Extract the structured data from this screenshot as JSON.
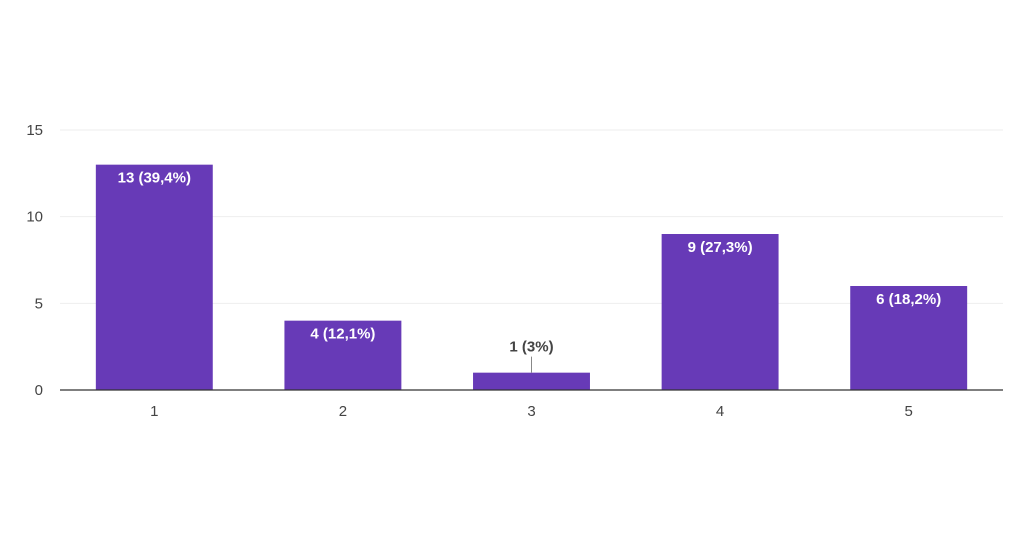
{
  "chart_data": {
    "type": "bar",
    "categories": [
      "1",
      "2",
      "3",
      "4",
      "5"
    ],
    "values": [
      13,
      4,
      1,
      9,
      6
    ],
    "data_labels": [
      "13 (39,4%)",
      "4 (12,1%)",
      "1 (3%)",
      "9 (27,3%)",
      "6 (18,2%)"
    ],
    "ylim": [
      0,
      15
    ],
    "yticks": [
      0,
      5,
      10,
      15
    ],
    "grid": true,
    "legend": "none",
    "title": "",
    "xlabel": "",
    "ylabel": ""
  },
  "colors": {
    "bar": "#673ab7",
    "grid": "#eeeeee",
    "axis": "#333333",
    "label_inside": "#ffffff",
    "label_outside": "#444444"
  }
}
